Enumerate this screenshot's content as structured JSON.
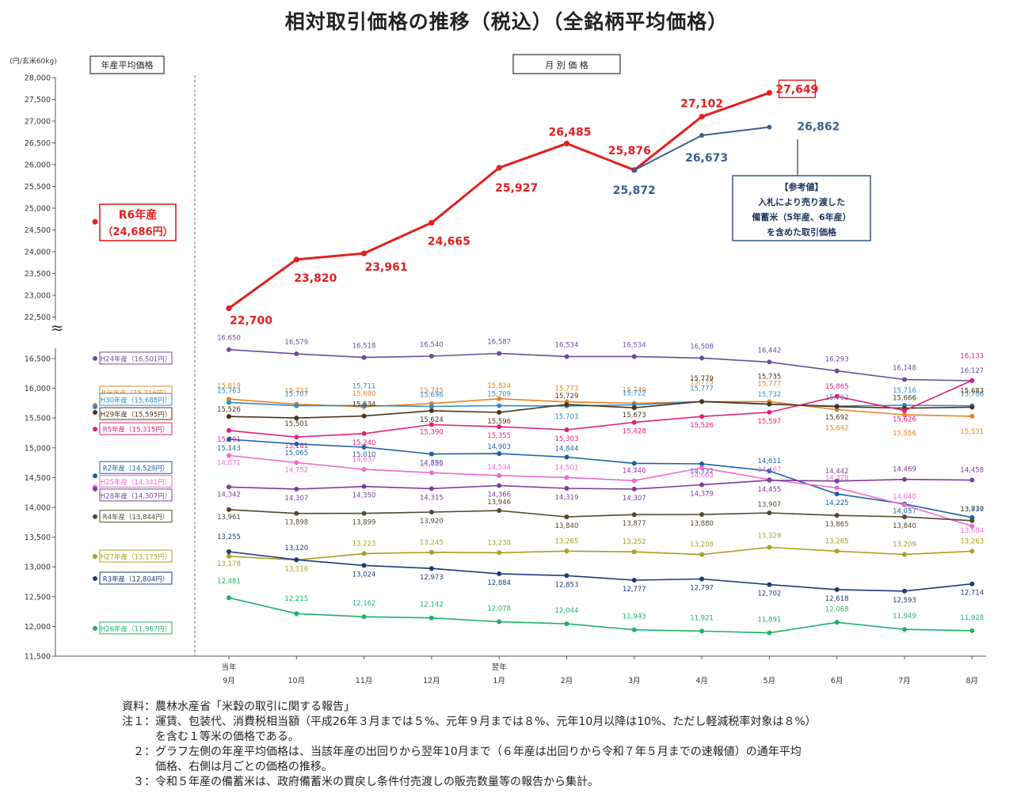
{
  "title": "相対取引価格の推移（税込）（全銘柄平均価格）",
  "unit_label": "(円/玄米60kg)",
  "left_header": "年産平均価格",
  "right_header": "月 別 価 格",
  "break_mark": "≈",
  "notes": [
    {
      "key": "資料：",
      "text": "農林水産省「米穀の取引に関する報告」"
    },
    {
      "key": "注１：",
      "text": "運賃、包装代、消費税相当額（平成26年３月までは５%、元年９月までは８%、元年10月以降は10%、ただし軽減税率対象は８%）"
    },
    {
      "key": "",
      "text": "を含む１等米の価格である。"
    },
    {
      "key": "２：",
      "text": "グラフ左側の年産平均価格は、当該年産の出回りから翌年10月まで（６年産は出回りから令和７年５月までの速報値）の通年平均"
    },
    {
      "key": "",
      "text": "価格、右側は月ごとの価格の推移。"
    },
    {
      "key": "３：",
      "text": "令和５年産の備蓄米は、政府備蓄米の買戻し条件付売渡しの販売数量等の報告から集計。"
    }
  ],
  "chart_data": {
    "type": "line",
    "categories": [
      "9月",
      "10月",
      "11月",
      "12月",
      "1月",
      "2月",
      "3月",
      "4月",
      "5月",
      "6月",
      "7月",
      "8月"
    ],
    "category_prefix": [
      "当年",
      "",
      "",
      "",
      "翌年",
      "",
      "",
      "",
      "",
      "",
      "",
      ""
    ],
    "y_upper": {
      "ylim": [
        22500,
        28000
      ],
      "ticks": [
        "22,500",
        "23,000",
        "23,500",
        "24,000",
        "24,500",
        "25,000",
        "25,500",
        "26,000",
        "26,500",
        "27,000",
        "27,500",
        "28,000"
      ]
    },
    "y_lower": {
      "ylim": [
        11500,
        16500
      ],
      "ticks": [
        "11,500",
        "12,000",
        "12,500",
        "13,000",
        "13,500",
        "14,000",
        "14,500",
        "15,000",
        "15,500",
        "16,000",
        "16,500"
      ]
    },
    "series": [
      {
        "name": "R6年産（24,686円）",
        "avg": 24686,
        "color": "#e02020",
        "segment": "upper",
        "values": [
          22700,
          23820,
          23961,
          24665,
          25927,
          26485,
          25876,
          27102,
          27649,
          null,
          null,
          null
        ],
        "labels": [
          "22,700",
          "23,820",
          "23,961",
          "24,665",
          "25,927",
          "26,485",
          "25,876",
          "27,102",
          "27,649",
          "",
          "",
          ""
        ]
      },
      {
        "name": "R6参考値",
        "avg": null,
        "color": "#3a6090",
        "segment": "upper",
        "values": [
          null,
          null,
          null,
          null,
          null,
          null,
          25872,
          26673,
          26862,
          null,
          null,
          null
        ],
        "labels": [
          "",
          "",
          "",
          "",
          "",
          "",
          "25,872",
          "26,673",
          "26,862",
          "",
          "",
          ""
        ]
      },
      {
        "name": "H24年産（16,501円）",
        "avg": 16501,
        "color": "#6a4c9c",
        "segment": "lower",
        "values": [
          16650,
          16579,
          16518,
          16540,
          16587,
          16534,
          16534,
          16508,
          16442,
          16293,
          16148,
          16127
        ],
        "labels": [
          "16,650",
          "16,579",
          "16,518",
          "16,540",
          "16,587",
          "16,534",
          "16,534",
          "16,508",
          "16,442",
          "16,293",
          "16,148",
          "16,127"
        ]
      },
      {
        "name": "R元年産（15,716円）",
        "avg": 15716,
        "color": "#e8821e",
        "segment": "lower",
        "values": [
          15819,
          15733,
          15690,
          15745,
          15824,
          15773,
          15749,
          15775,
          15777,
          15642,
          15556,
          15531
        ],
        "labels": [
          "15,819",
          "15,733",
          "15,690",
          "15,745",
          "15,824",
          "15,773",
          "15,749",
          "15,775",
          "15,777",
          "15,642",
          "15,556",
          "15,531"
        ]
      },
      {
        "name": "H30年産（15,688円）",
        "avg": 15688,
        "color": "#2e8bc9",
        "segment": "lower",
        "values": [
          15763,
          15707,
          15711,
          15696,
          15709,
          15703,
          15722,
          15777,
          15732,
          15702,
          15716,
          15706
        ],
        "labels": [
          "15,763",
          "15,707",
          "15,711",
          "15,696",
          "15,709",
          "15,703",
          "15,722",
          "15,777",
          "15,732",
          "15,702",
          "15,716",
          "15,706"
        ]
      },
      {
        "name": "H29年産（15,595円）",
        "avg": 15595,
        "color": "#4a3418",
        "segment": "lower",
        "values": [
          15526,
          15501,
          15534,
          15624,
          15596,
          15729,
          15673,
          15779,
          15735,
          15692,
          15666,
          15683
        ],
        "labels": [
          "15,526",
          "15,501",
          "15,534",
          "15,624",
          "15,596",
          "15,729",
          "15,673",
          "15,779",
          "15,735",
          "15,692",
          "15,666",
          "15,683"
        ]
      },
      {
        "name": "R5年産（15,315円）",
        "avg": 15315,
        "color": "#e0207a",
        "segment": "lower",
        "values": [
          15291,
          15181,
          15240,
          15390,
          15355,
          15303,
          15428,
          15526,
          15597,
          15865,
          15626,
          16133
        ],
        "labels": [
          "15,291",
          "15,181",
          "15,240",
          "15,390",
          "15,355",
          "15,303",
          "15,428",
          "15,526",
          "15,597",
          "15,865",
          "15,626",
          "16,133"
        ]
      },
      {
        "name": "R2年産（14,529円）",
        "avg": 14529,
        "color": "#1f5fa8",
        "segment": "lower",
        "values": [
          15143,
          15065,
          15010,
          14896,
          14903,
          14844,
          14740,
          14732,
          14611,
          14225,
          14057,
          13830
        ],
        "labels": [
          "15,143",
          "15,065",
          "15,010",
          "14,896",
          "14,903",
          "14,844",
          "14,740",
          "14,732",
          "14,611",
          "14,225",
          "14,057",
          "13,830"
        ]
      },
      {
        "name": "H25年産（14,341円）",
        "avg": 14341,
        "color": "#f06ad0",
        "segment": "lower",
        "values": [
          14871,
          14752,
          14637,
          14582,
          14534,
          14501,
          14449,
          14663,
          14467,
          14328,
          14040,
          13684
        ],
        "labels": [
          "14,871",
          "14,752",
          "14,637",
          "14,582",
          "14,534",
          "14,501",
          "14,449",
          "14,663",
          "14,467",
          "14,328",
          "14,040",
          "13,684"
        ]
      },
      {
        "name": "H28年産（14,307円）",
        "avg": 14307,
        "color": "#7a3d9e",
        "segment": "lower",
        "values": [
          14342,
          14307,
          14350,
          14315,
          14366,
          14319,
          14307,
          14379,
          14455,
          14442,
          14469,
          14458
        ],
        "labels": [
          "14,342",
          "14,307",
          "14,350",
          "14,315",
          "14,366",
          "14,319",
          "14,307",
          "14,379",
          "14,455",
          "14,442",
          "14,469",
          "14,458"
        ]
      },
      {
        "name": "R4年産（13,844円）",
        "avg": 13844,
        "color": "#4f4a2c",
        "segment": "lower",
        "values": [
          13961,
          13898,
          13899,
          13920,
          13946,
          13840,
          13877,
          13880,
          13907,
          13865,
          13840,
          13777
        ],
        "labels": [
          "13,961",
          "13,898",
          "13,899",
          "13,920",
          "13,946",
          "13,840",
          "13,877",
          "13,880",
          "13,907",
          "13,865",
          "13,840",
          "13,777"
        ]
      },
      {
        "name": "H27年産（13,175円）",
        "avg": 13175,
        "color": "#a8a020",
        "segment": "lower",
        "values": [
          13178,
          13116,
          13223,
          13245,
          13238,
          13265,
          13252,
          13208,
          13329,
          13265,
          13209,
          13263
        ],
        "labels": [
          "13,178",
          "13,116",
          "13,223",
          "13,245",
          "13,238",
          "13,265",
          "13,252",
          "13,208",
          "13,329",
          "13,265",
          "13,209",
          "13,263"
        ]
      },
      {
        "name": "R3年産（12,804円）",
        "avg": 12804,
        "color": "#1c3a78",
        "segment": "lower",
        "values": [
          13255,
          13120,
          13024,
          12973,
          12884,
          12853,
          12777,
          12797,
          12702,
          12618,
          12593,
          12714
        ],
        "labels": [
          "13,255",
          "13,120",
          "13,024",
          "12,973",
          "12,884",
          "12,853",
          "12,777",
          "12,797",
          "12,702",
          "12,618",
          "12,593",
          "12,714"
        ]
      },
      {
        "name": "H26年産（11,967円）",
        "avg": 11967,
        "color": "#1fb06a",
        "segment": "lower",
        "values": [
          12481,
          12215,
          12162,
          12142,
          12078,
          12044,
          11943,
          11921,
          11891,
          12068,
          11949,
          11928
        ],
        "labels": [
          "12,481",
          "12,215",
          "12,162",
          "12,142",
          "12,078",
          "12,044",
          "11,943",
          "11,921",
          "11,891",
          "12,068",
          "11,949",
          "11,928"
        ]
      }
    ],
    "r6_avg_label": [
      "R6年産",
      "（24,686円）"
    ],
    "reference_box": [
      "【参考値】",
      "入札により売り渡した",
      "備蓄米（5年産、6年産）",
      "を含めた取引価格"
    ]
  }
}
